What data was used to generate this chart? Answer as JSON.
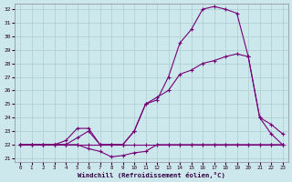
{
  "xlabel": "Windchill (Refroidissement éolien,°C)",
  "bg_color": "#cce8ec",
  "grid_color": "#aacccc",
  "line_color": "#770077",
  "xlim_min": -0.5,
  "xlim_max": 23.5,
  "ylim_min": 20.7,
  "ylim_max": 32.4,
  "yticks": [
    21,
    22,
    23,
    24,
    25,
    26,
    27,
    28,
    29,
    30,
    31,
    32
  ],
  "xticks": [
    0,
    1,
    2,
    3,
    4,
    5,
    6,
    7,
    8,
    9,
    10,
    11,
    12,
    13,
    14,
    15,
    16,
    17,
    18,
    19,
    20,
    21,
    22,
    23
  ],
  "series": [
    {
      "x": [
        0,
        1,
        2,
        3,
        4,
        5,
        6,
        7,
        8,
        9,
        10,
        11,
        12,
        13,
        14,
        15,
        16,
        17,
        18,
        19,
        20,
        21,
        22,
        23
      ],
      "y": [
        22,
        22,
        22,
        22,
        22,
        22,
        22,
        22,
        22,
        22,
        22,
        22,
        22,
        22,
        22,
        22,
        22,
        22,
        22,
        22,
        22,
        22,
        22,
        22
      ]
    },
    {
      "x": [
        0,
        1,
        2,
        3,
        4,
        5,
        6,
        7,
        8,
        9,
        10,
        11,
        12,
        13,
        14,
        15,
        16,
        17,
        18,
        19,
        20,
        21,
        22,
        23
      ],
      "y": [
        22,
        22,
        22,
        22,
        22,
        22,
        21.7,
        21.5,
        21.1,
        21.2,
        21.4,
        21.5,
        22,
        22,
        22,
        22,
        22,
        22,
        22,
        22,
        22,
        22,
        22,
        22
      ]
    },
    {
      "x": [
        0,
        1,
        2,
        3,
        4,
        5,
        6,
        7,
        8,
        9,
        10,
        11,
        12,
        13,
        14,
        15,
        16,
        17,
        18,
        19,
        20,
        21,
        22,
        23
      ],
      "y": [
        22,
        22,
        22,
        22,
        22,
        22.5,
        23,
        22,
        22,
        22,
        23,
        25,
        25.3,
        27,
        29.5,
        30.5,
        32.0,
        32.2,
        32.0,
        31.7,
        28.5,
        24.0,
        22.8,
        22
      ]
    },
    {
      "x": [
        0,
        1,
        2,
        3,
        4,
        5,
        6,
        7,
        8,
        9,
        10,
        11,
        12,
        13,
        14,
        15,
        16,
        17,
        18,
        19,
        20,
        21,
        22,
        23
      ],
      "y": [
        22,
        22,
        22,
        22,
        22.3,
        23.2,
        23.2,
        22,
        22,
        22,
        23,
        25,
        25.5,
        26.0,
        27.2,
        27.5,
        28.0,
        28.2,
        28.5,
        28.7,
        28.5,
        24.0,
        23.5,
        22.8
      ]
    }
  ]
}
